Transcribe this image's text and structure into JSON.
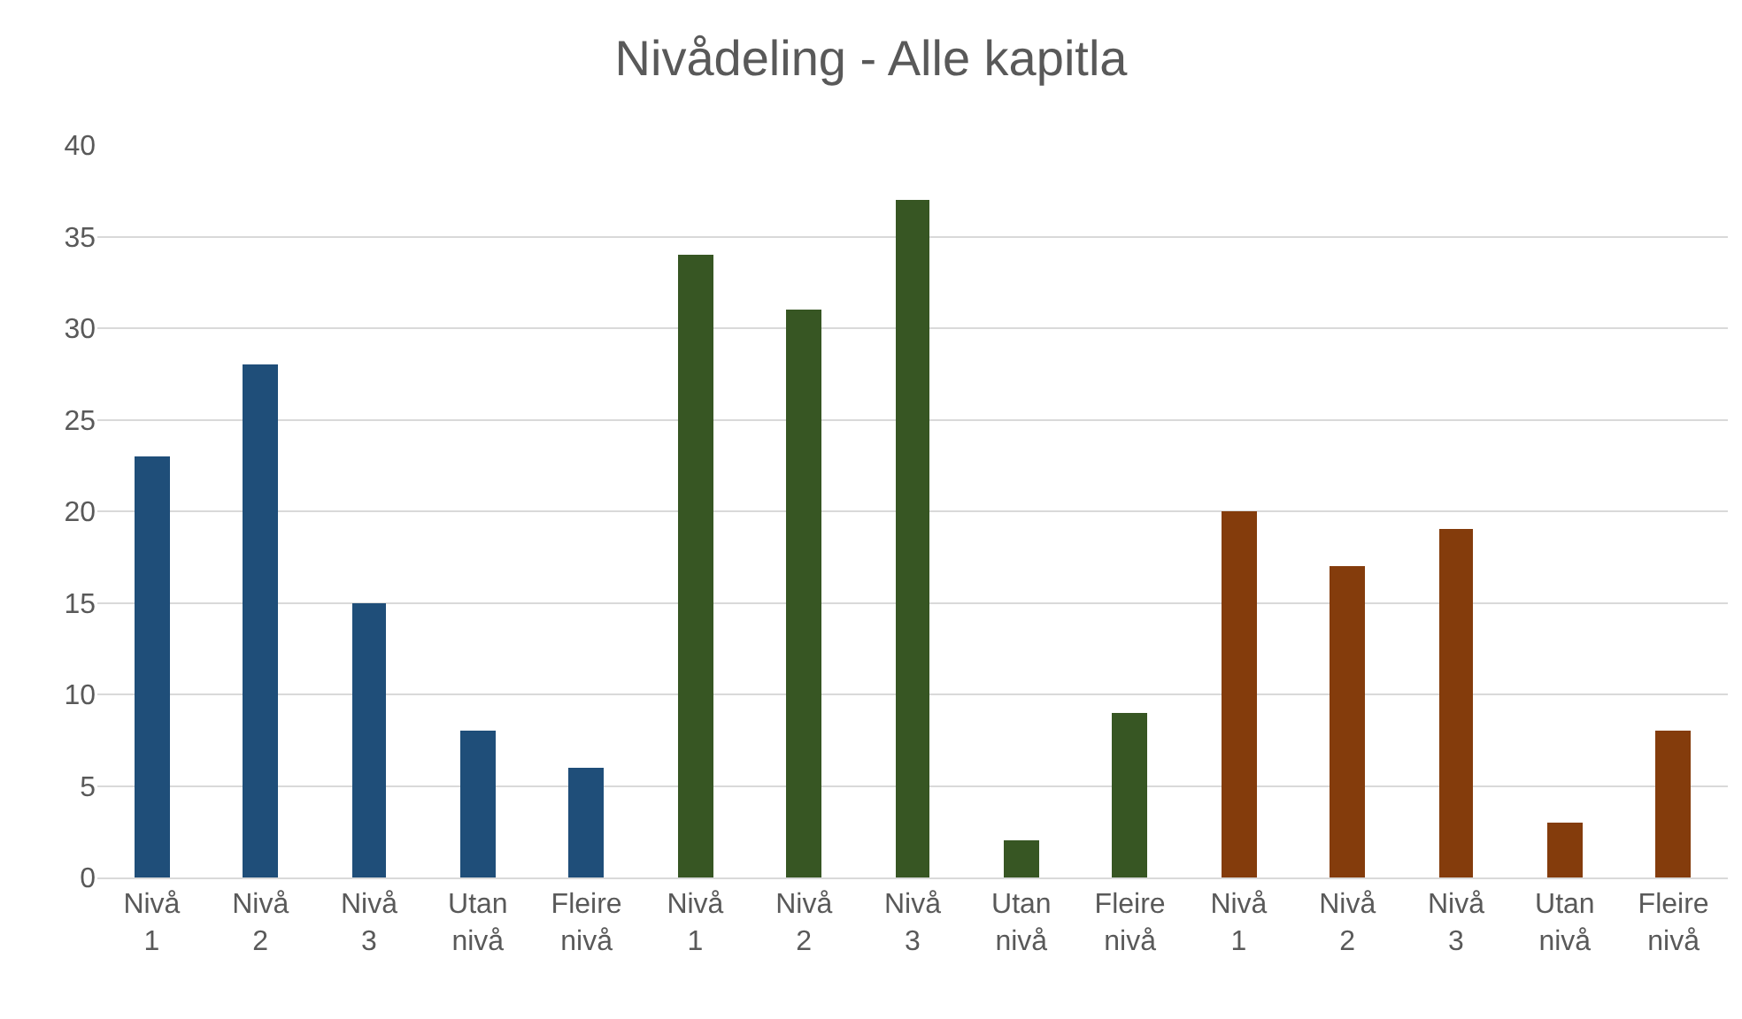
{
  "chart_data": {
    "type": "bar",
    "title": "Nivådeling - Alle kapitla",
    "categories": [
      "Nivå 1",
      "Nivå 2",
      "Nivå 3",
      "Utan nivå",
      "Fleire nivå",
      "Nivå 1",
      "Nivå 2",
      "Nivå 3",
      "Utan nivå",
      "Fleire nivå",
      "Nivå 1",
      "Nivå 2",
      "Nivå 3",
      "Utan nivå",
      "Fleire nivå"
    ],
    "values": [
      23,
      28,
      15,
      8,
      6,
      34,
      31,
      37,
      2,
      9,
      20,
      17,
      19,
      3,
      8
    ],
    "colors": [
      "#1f4e79",
      "#1f4e79",
      "#1f4e79",
      "#1f4e79",
      "#1f4e79",
      "#375623",
      "#375623",
      "#375623",
      "#375623",
      "#375623",
      "#843c0c",
      "#843c0c",
      "#843c0c",
      "#843c0c",
      "#843c0c"
    ],
    "ylim": [
      0,
      40
    ],
    "yticks": [
      0,
      5,
      10,
      15,
      20,
      25,
      30,
      35,
      40
    ],
    "grid": "y"
  }
}
